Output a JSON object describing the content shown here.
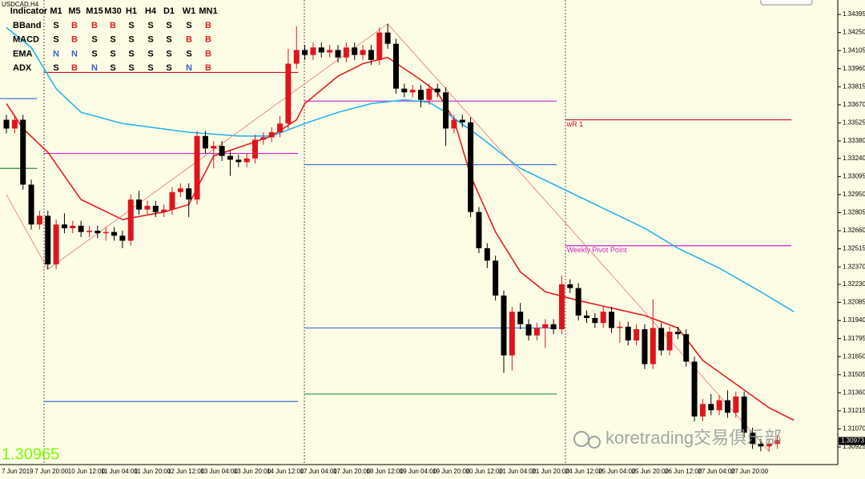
{
  "symbol": "USDCAD,H4",
  "indicator_table": {
    "header": [
      "Indicator",
      "M1",
      "M5",
      "M15",
      "M30",
      "H1",
      "H4",
      "D1",
      "W1",
      "MN1"
    ],
    "rows": [
      {
        "label": "BBand",
        "signals": [
          "S",
          "B",
          "B",
          "B",
          "S",
          "S",
          "S",
          "S",
          "B"
        ]
      },
      {
        "label": "MACD",
        "signals": [
          "S",
          "B",
          "S",
          "S",
          "S",
          "S",
          "S",
          "B",
          "B"
        ]
      },
      {
        "label": "EMA",
        "signals": [
          "N",
          "N",
          "S",
          "S",
          "S",
          "S",
          "S",
          "S",
          "B"
        ]
      },
      {
        "label": "ADX",
        "signals": [
          "S",
          "B",
          "N",
          "S",
          "S",
          "S",
          "S",
          "N",
          "B"
        ]
      }
    ],
    "signal_colors": {
      "S": "#000000",
      "B": "#e0201c",
      "N": "#3a5fd8"
    }
  },
  "chart_data": {
    "type": "candlestick",
    "x": [
      "7 Jun 2019",
      null,
      null,
      null,
      "7 Jun 20:00",
      null,
      null,
      null,
      "10 Jun 12:00",
      null,
      null,
      null,
      "11 Jun 04:00",
      null,
      null,
      null,
      "11 Jun 20:00",
      null,
      null,
      null,
      "12 Jun 12:00",
      null,
      null,
      null,
      "13 Jun 04:00",
      null,
      null,
      null,
      "13 Jun 20:00",
      null,
      null,
      null,
      "14 Jun 12:00",
      null,
      null,
      null,
      "17 Jun 04:00",
      null,
      null,
      null,
      "17 Jun 20:00",
      null,
      null,
      null,
      "18 Jun 12:00",
      null,
      null,
      null,
      "19 Jun 04:00",
      null,
      null,
      null,
      "19 Jun 20:00",
      null,
      null,
      null,
      "20 Jun 12:00",
      null,
      null,
      null,
      "21 Jun 04:00",
      null,
      null,
      null,
      "21 Jun 20:00",
      null,
      null,
      null,
      "24 Jun 12:00",
      null,
      null,
      null,
      "25 Jun 04:00",
      null,
      null,
      null,
      "25 Jun 20:00",
      null,
      null,
      null,
      "26 Jun 12:00",
      null,
      null,
      null,
      "27 Jun 04:00",
      null,
      null,
      null,
      "27 Jun 20:00",
      null,
      null,
      null,
      null,
      null
    ],
    "open": [
      1.3355,
      1.3348,
      1.3355,
      1.3303,
      1.3271,
      1.3278,
      1.3239,
      1.3271,
      1.3268,
      1.327,
      1.3265,
      1.3266,
      1.3264,
      1.3265,
      1.3262,
      1.3258,
      1.3291,
      1.3283,
      1.3286,
      1.3281,
      1.3283,
      1.3297,
      1.33,
      1.3291,
      1.3342,
      1.3332,
      1.3334,
      1.3326,
      1.3323,
      1.3321,
      1.3324,
      1.3339,
      1.3341,
      1.3345,
      1.3352,
      1.34,
      1.3411,
      1.3407,
      1.3413,
      1.3409,
      1.3411,
      1.3405,
      1.3413,
      1.3407,
      1.3411,
      1.3403,
      1.3425,
      1.3416,
      1.338,
      1.3377,
      1.3379,
      1.3371,
      1.338,
      1.3377,
      1.3348,
      1.3355,
      1.3353,
      1.3281,
      1.3252,
      1.3242,
      1.3214,
      1.3166,
      1.3201,
      1.3191,
      1.3182,
      1.3188,
      1.3191,
      1.3187,
      1.3223,
      1.322,
      1.3198,
      1.3196,
      1.3192,
      1.3201,
      1.3188,
      1.3189,
      1.3178,
      1.3187,
      1.3159,
      1.3188,
      1.317,
      1.3185,
      1.3183,
      1.3161,
      1.3117,
      1.3127,
      1.3122,
      1.313,
      1.312,
      1.3133,
      1.3104,
      1.3095,
      1.3093,
      1.3095
    ],
    "high": [
      1.3359,
      1.3359,
      1.3359,
      1.3307,
      1.3282,
      1.3282,
      1.3275,
      1.328,
      1.3274,
      1.3274,
      1.327,
      1.327,
      1.3269,
      1.3269,
      1.3266,
      1.3295,
      1.3298,
      1.329,
      1.329,
      1.3287,
      1.3301,
      1.3304,
      1.3304,
      1.3346,
      1.3346,
      1.3338,
      1.3338,
      1.333,
      1.3327,
      1.3328,
      1.3343,
      1.3345,
      1.3349,
      1.3358,
      1.3412,
      1.343,
      1.3415,
      1.3417,
      1.3417,
      1.3415,
      1.3415,
      1.3417,
      1.3417,
      1.3415,
      1.3415,
      1.3429,
      1.3432,
      1.342,
      1.3384,
      1.3383,
      1.3383,
      1.3384,
      1.3384,
      1.3381,
      1.3359,
      1.3359,
      1.3357,
      1.3285,
      1.3256,
      1.3246,
      1.3218,
      1.3205,
      1.3208,
      1.3195,
      1.3192,
      1.3195,
      1.3195,
      1.323,
      1.3227,
      1.3224,
      1.3202,
      1.32,
      1.3205,
      1.3205,
      1.3193,
      1.3193,
      1.3191,
      1.3191,
      1.3211,
      1.3192,
      1.3189,
      1.3189,
      1.3187,
      1.3165,
      1.3131,
      1.3135,
      1.3134,
      1.3138,
      1.3137,
      1.3137,
      1.3108,
      1.3099,
      1.3099,
      1.3102
    ],
    "low": [
      1.3344,
      1.3344,
      1.3299,
      1.3267,
      1.3267,
      1.3235,
      1.3235,
      1.3264,
      1.3264,
      1.3261,
      1.3261,
      1.326,
      1.3258,
      1.3258,
      1.3252,
      1.3254,
      1.3279,
      1.3279,
      1.3277,
      1.3277,
      1.3279,
      1.3293,
      1.3277,
      1.3287,
      1.3328,
      1.3316,
      1.3322,
      1.331,
      1.3317,
      1.3317,
      1.332,
      1.3335,
      1.3337,
      1.3341,
      1.3348,
      1.3396,
      1.3403,
      1.3403,
      1.3405,
      1.3405,
      1.3401,
      1.3401,
      1.3403,
      1.3403,
      1.3399,
      1.3399,
      1.3412,
      1.3376,
      1.3373,
      1.3373,
      1.3365,
      1.3367,
      1.3373,
      1.3334,
      1.3344,
      1.3349,
      1.3277,
      1.3248,
      1.3236,
      1.321,
      1.3152,
      1.3154,
      1.3187,
      1.3178,
      1.3178,
      1.3172,
      1.3183,
      1.3183,
      1.3216,
      1.3194,
      1.3192,
      1.3188,
      1.3188,
      1.3184,
      1.3176,
      1.3174,
      1.3174,
      1.3155,
      1.3155,
      1.3166,
      1.3166,
      1.3179,
      1.3157,
      1.3113,
      1.3113,
      1.3118,
      1.3118,
      1.3116,
      1.3116,
      1.31,
      1.3091,
      1.3089,
      1.3089,
      1.3091
    ],
    "close": [
      1.3348,
      1.3355,
      1.3303,
      1.3271,
      1.3278,
      1.3239,
      1.3271,
      1.3268,
      1.327,
      1.3265,
      1.3266,
      1.3264,
      1.3265,
      1.3262,
      1.3258,
      1.3291,
      1.3283,
      1.3286,
      1.3281,
      1.3283,
      1.3297,
      1.33,
      1.3291,
      1.3342,
      1.3332,
      1.3334,
      1.3326,
      1.3323,
      1.3321,
      1.3324,
      1.3339,
      1.3341,
      1.3345,
      1.3352,
      1.34,
      1.3411,
      1.3407,
      1.3413,
      1.3409,
      1.3411,
      1.3405,
      1.3413,
      1.3407,
      1.3411,
      1.3403,
      1.3425,
      1.3416,
      1.338,
      1.3377,
      1.3379,
      1.3371,
      1.338,
      1.3377,
      1.3348,
      1.3355,
      1.3353,
      1.3281,
      1.3252,
      1.3242,
      1.3214,
      1.3166,
      1.3201,
      1.3191,
      1.3182,
      1.3188,
      1.3191,
      1.3187,
      1.3223,
      1.322,
      1.3198,
      1.3196,
      1.3192,
      1.3201,
      1.3188,
      1.3189,
      1.3178,
      1.3187,
      1.3159,
      1.3188,
      1.317,
      1.3185,
      1.3183,
      1.3161,
      1.3117,
      1.3127,
      1.3122,
      1.313,
      1.312,
      1.3133,
      1.3104,
      1.3095,
      1.3093,
      1.3095,
      1.3098
    ],
    "up_color": "#e0141c",
    "down_color": "#000000",
    "ylim": [
      1.30784,
      1.34511
    ],
    "yticks": [
      1.34395,
      {
        "value": 1.3425,
        "label": "1.34250"
      },
      1.34105,
      {
        "value": 1.3396,
        "label": "1.33960"
      },
      1.33815,
      {
        "value": 1.3367,
        "label": "1.33670"
      },
      1.33525,
      {
        "value": 1.3338,
        "label": "1.33380"
      },
      {
        "value": 1.3324,
        "label": "1.33240"
      },
      1.33095,
      {
        "value": 1.3295,
        "label": "1.32950"
      },
      1.32805,
      {
        "value": 1.3266,
        "label": "1.32660"
      },
      1.32515,
      {
        "value": 1.3237,
        "label": "1.32370"
      },
      {
        "value": 1.3223,
        "label": "1.32230"
      },
      1.32085,
      {
        "value": 1.3194,
        "label": "1.31940"
      },
      1.31795,
      {
        "value": 1.3165,
        "label": "1.31650"
      },
      1.31505,
      {
        "value": 1.3136,
        "label": "1.31360"
      },
      1.31215,
      {
        "value": 1.3107,
        "label": "1.31070"
      },
      1.30925
    ],
    "grid": false,
    "lines": [
      {
        "color": "#e41e1e",
        "x": [
          0,
          2,
          5,
          9,
          14,
          19,
          22,
          25,
          29,
          32,
          35,
          36,
          40,
          43,
          46,
          48,
          50,
          52,
          54,
          56,
          59,
          62,
          65,
          69,
          73,
          77,
          81,
          84,
          88,
          92,
          95
        ],
        "values": [
          1.3368,
          1.3348,
          1.3329,
          1.3291,
          1.3275,
          1.3281,
          1.3287,
          1.3326,
          1.3335,
          1.3342,
          1.3355,
          1.3368,
          1.339,
          1.34,
          1.3405,
          1.3396,
          1.3387,
          1.3377,
          1.3355,
          1.331,
          1.3265,
          1.3233,
          1.3217,
          1.321,
          1.3204,
          1.3198,
          1.3188,
          1.3162,
          1.3143,
          1.3124,
          1.3114
        ]
      },
      {
        "color": "#22b4ee",
        "x": [
          0,
          3,
          6,
          9,
          14,
          22,
          28,
          32,
          36,
          40,
          44,
          48,
          51,
          53,
          57,
          62,
          67,
          72,
          77,
          81,
          86,
          91,
          95
        ],
        "values": [
          1.3429,
          1.3413,
          1.338,
          1.3361,
          1.3352,
          1.3345,
          1.3342,
          1.3342,
          1.3352,
          1.3361,
          1.3368,
          1.3371,
          1.3369,
          1.3361,
          1.3342,
          1.3316,
          1.33,
          1.3284,
          1.3268,
          1.3252,
          1.3236,
          1.3217,
          1.3201
        ]
      },
      {
        "color": "#e87070",
        "x": [
          0,
          5,
          46,
          92
        ],
        "values": [
          1.3295,
          1.3235,
          1.3432,
          1.3089
        ]
      }
    ],
    "levels": [
      {
        "color": "#c8141c",
        "from": 4.5,
        "to": 35.2,
        "value": 1.3393
      },
      {
        "color": "#c8141c",
        "from": 67.4,
        "to": 94.7,
        "value": 1.3355,
        "label": "wR 1"
      },
      {
        "color": "#cc22cc",
        "from": 4.5,
        "to": 35.2,
        "value": 1.3328
      },
      {
        "color": "#cc22cc",
        "from": 35.9,
        "to": 66.4,
        "value": 1.337
      },
      {
        "color": "#cc22cc",
        "from": 67.4,
        "to": 94.7,
        "value": 1.3254,
        "label": "Weekly Pivot Point"
      },
      {
        "color": "#3d6fd6",
        "from": -1.5,
        "to": 3.7,
        "value": 1.3372
      },
      {
        "color": "#3d6fd6",
        "from": 4.5,
        "to": 35.2,
        "value": 1.3129
      },
      {
        "color": "#3d6fd6",
        "from": 35.9,
        "to": 66.4,
        "value": 1.3319
      },
      {
        "color": "#3d6fd6",
        "from": 35.9,
        "to": 66.4,
        "value": 1.3188
      },
      {
        "color": "#2e8b3e",
        "from": -1.5,
        "to": 3.7,
        "value": 1.3316
      },
      {
        "color": "#2e8b3e",
        "from": 35.9,
        "to": 66.4,
        "value": 1.3135
      }
    ],
    "last_price": 1.30973
  },
  "price_display": 1.30965,
  "watermark": "koretrading交易俱乐部"
}
